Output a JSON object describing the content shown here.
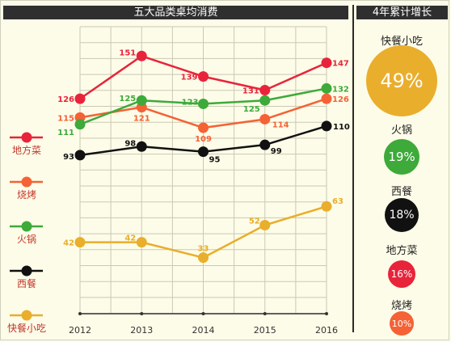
{
  "left_title": "五大品类桌均消费",
  "right_title": "4年累计增长",
  "chart_data": {
    "type": "line",
    "title": "五大品类桌均消费",
    "x": [
      "2012",
      "2013",
      "2014",
      "2015",
      "2016"
    ],
    "ylim": [
      0,
      160
    ],
    "grid": true,
    "legend": "left",
    "series": [
      {
        "name": "地方菜",
        "color": "#e8243a",
        "values": [
          126,
          151,
          139,
          131,
          147
        ]
      },
      {
        "name": "烧烤",
        "color": "#f46235",
        "values": [
          115,
          121,
          109,
          114,
          126
        ]
      },
      {
        "name": "火锅",
        "color": "#3daa3a",
        "values": [
          111,
          125,
          123,
          125,
          132
        ]
      },
      {
        "name": "西餐",
        "color": "#111111",
        "values": [
          93,
          98,
          95,
          99,
          110
        ]
      },
      {
        "name": "快餐小吃",
        "color": "#e9ae2c",
        "values": [
          42,
          42,
          33,
          52,
          63
        ]
      }
    ]
  },
  "growth": [
    {
      "name": "快餐小吃",
      "value": "49%",
      "color": "#e9ae2c"
    },
    {
      "name": "火锅",
      "value": "19%",
      "color": "#3daa3a"
    },
    {
      "name": "西餐",
      "value": "18%",
      "color": "#111111"
    },
    {
      "name": "地方菜",
      "value": "16%",
      "color": "#e8243a"
    },
    {
      "name": "烧烤",
      "value": "10%",
      "color": "#f46235"
    }
  ]
}
